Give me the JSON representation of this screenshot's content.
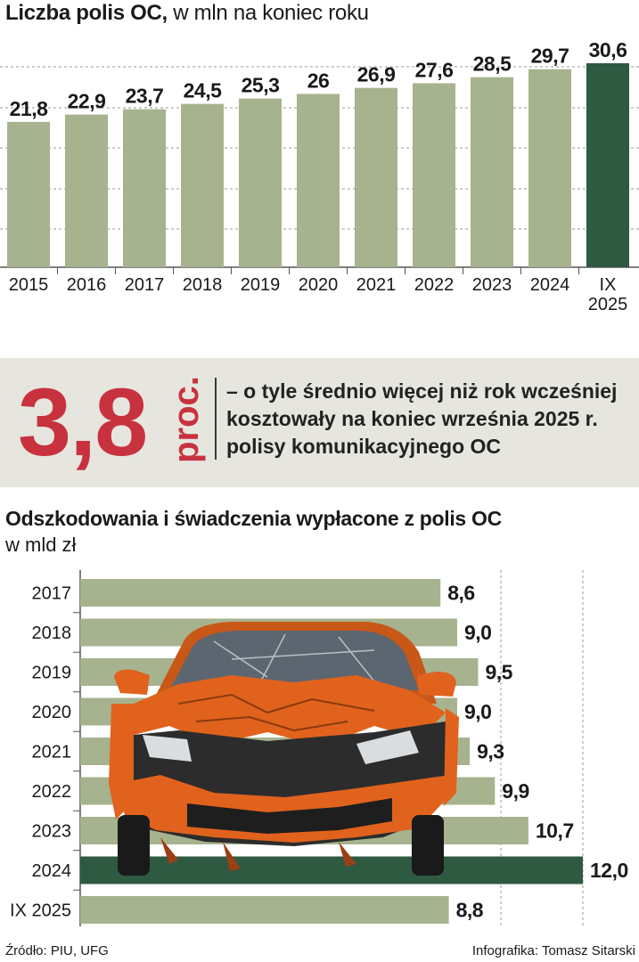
{
  "top_chart": {
    "title_bold": "Liczba polis OC,",
    "title_rest": " w mln na koniec roku",
    "chart_data": {
      "type": "bar",
      "categories": [
        [
          "2015"
        ],
        [
          "2016"
        ],
        [
          "2017"
        ],
        [
          "2018"
        ],
        [
          "2019"
        ],
        [
          "2020"
        ],
        [
          "2021"
        ],
        [
          "2022"
        ],
        [
          "2023"
        ],
        [
          "2024"
        ],
        [
          "IX",
          "2025"
        ]
      ],
      "values": [
        21.8,
        22.9,
        23.7,
        24.5,
        25.3,
        26.0,
        26.9,
        27.6,
        28.5,
        29.7,
        30.6
      ],
      "value_labels": [
        "21,8",
        "22,9",
        "23,7",
        "24,5",
        "25,3",
        "26",
        "26,9",
        "27,6",
        "28,5",
        "29,7",
        "30,6"
      ],
      "highlight_index": 10,
      "colors": {
        "bar": "#a6b38e",
        "highlight": "#2e5a42"
      }
    }
  },
  "callout": {
    "number": "3,8",
    "unit": "proc.",
    "text": "– o tyle średnio więcej niż rok wcześniej kosztowały na koniec września 2025 r. polisy komunikacyjnego OC"
  },
  "bottom_chart": {
    "title": "Odszkodowania i świadczenia wypłacone z polis OC",
    "subtitle": "w mld zł",
    "chart_data": {
      "type": "bar",
      "orientation": "horizontal",
      "categories": [
        "2017",
        "2018",
        "2019",
        "2020",
        "2021",
        "2022",
        "2023",
        "2024",
        "IX 2025"
      ],
      "values": [
        8.6,
        9.0,
        9.5,
        9.0,
        9.3,
        9.9,
        10.7,
        12.0,
        8.8
      ],
      "value_labels": [
        "8,6",
        "9,0",
        "9,5",
        "9,0",
        "9,3",
        "9,9",
        "10,7",
        "12,0",
        "8,8"
      ],
      "highlight_index": 7,
      "colors": {
        "bar": "#a6b38e",
        "highlight": "#2e5a42",
        "car_body": "#e0621d"
      }
    }
  },
  "footer": {
    "source": "Źródło: PIU, UFG",
    "credit": "Infografika: Tomasz Sitarski"
  }
}
